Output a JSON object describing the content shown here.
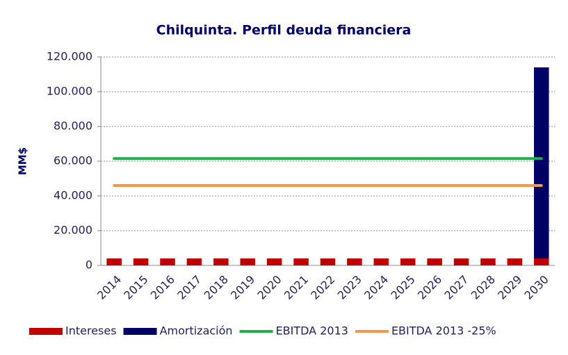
{
  "chart_data": {
    "type": "bar",
    "title": "Chilquinta. Perfil deuda financiera",
    "y_label": "MM$",
    "categories": [
      "2014",
      "2015",
      "2016",
      "2017",
      "2018",
      "2019",
      "2020",
      "2021",
      "2022",
      "2023",
      "2024",
      "2025",
      "2026",
      "2027",
      "2028",
      "2029",
      "2030"
    ],
    "series": [
      {
        "name": "Intereses",
        "color": "#c00000",
        "kind": "bar",
        "values": [
          4000,
          4000,
          4000,
          4000,
          4000,
          4000,
          4000,
          4000,
          4000,
          4000,
          4000,
          4000,
          4000,
          4000,
          4000,
          4000,
          4000
        ]
      },
      {
        "name": "Amortización",
        "color": "#000066",
        "kind": "bar",
        "values": [
          0,
          0,
          0,
          0,
          0,
          0,
          0,
          0,
          0,
          0,
          0,
          0,
          0,
          0,
          0,
          0,
          110000
        ]
      },
      {
        "name": "EBITDA 2013",
        "color": "#1db04a",
        "kind": "line",
        "values": [
          61500,
          61500,
          61500,
          61500,
          61500,
          61500,
          61500,
          61500,
          61500,
          61500,
          61500,
          61500,
          61500,
          61500,
          61500,
          61500,
          61500
        ]
      },
      {
        "name": "EBITDA 2013 -25%",
        "color": "#f79646",
        "kind": "line",
        "values": [
          46000,
          46000,
          46000,
          46000,
          46000,
          46000,
          46000,
          46000,
          46000,
          46000,
          46000,
          46000,
          46000,
          46000,
          46000,
          46000,
          46000
        ]
      }
    ],
    "stacked": true,
    "ylim": [
      0,
      120000
    ],
    "yticks": [
      0,
      {
        "value": 20000,
        "label": "20.000"
      },
      {
        "value": 40000,
        "label": "40.000"
      },
      {
        "value": 60000,
        "label": "60.000"
      },
      {
        "value": 80000,
        "label": "80.000"
      },
      {
        "value": 100000,
        "label": "100.000"
      },
      {
        "value": 120000,
        "label": "120.000"
      }
    ],
    "grid": true,
    "legend": "bottom"
  }
}
